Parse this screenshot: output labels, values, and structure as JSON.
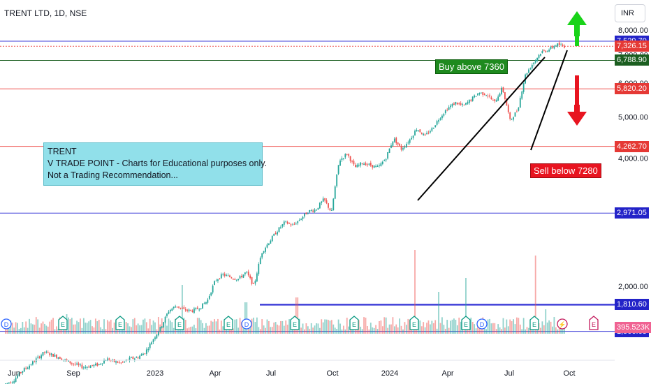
{
  "header": {
    "title": "TRENT LTD, 1D, NSE",
    "currency": "INR"
  },
  "note": {
    "line1": "TRENT",
    "line2": "V TRADE POINT - Charts for Educational purposes only.",
    "line3": "Not a Trading Recommendation..."
  },
  "annotations": {
    "buy": "Buy above 7360",
    "sell": "Sell below 7280"
  },
  "colors": {
    "up": "#26a69a",
    "down": "#ef5350",
    "buy": "#1e8a1e",
    "sell": "#e81420",
    "blue_line": "#3f3fd8",
    "red_line": "#ef5350",
    "green_line": "#1b5e20"
  },
  "chart_data": {
    "type": "line",
    "ylim": [
      1000,
      8500
    ],
    "y_ticks": [
      "2,000.00",
      "3,000.00",
      "4,000.00",
      "5,000.00",
      "6,000.00",
      "7,000.00",
      "8,000.00"
    ],
    "x_ticks": [
      "Jun",
      "Sep",
      "2023",
      "Apr",
      "Jul",
      "Oct",
      "2024",
      "Apr",
      "Jul",
      "Oct"
    ],
    "price_path": [
      1180,
      1200,
      1260,
      1300,
      1350,
      1400,
      1380,
      1360,
      1330,
      1310,
      1290,
      1300,
      1310,
      1350,
      1330,
      1320,
      1350,
      1360,
      1400,
      1500,
      1600,
      1750,
      1800,
      1760,
      1750,
      1780,
      1850,
      2060,
      2130,
      2100,
      2080,
      2160,
      2000,
      2400,
      2550,
      2700,
      2830,
      2780,
      2880,
      3000,
      3030,
      3200,
      2980,
      3950,
      4100,
      3800,
      3900,
      3850,
      3800,
      4000,
      4450,
      4200,
      4400,
      4700,
      4500,
      4700,
      5000,
      5250,
      5400,
      5300,
      5500,
      5700,
      5650,
      5400,
      5850,
      4900,
      5200,
      6300,
      6700,
      7100,
      7200,
      7400,
      7326
    ],
    "levels": [
      {
        "label": "7,529.70",
        "value": 7529.7,
        "color": "blue"
      },
      {
        "label": "7,326.15",
        "value": 7326.15,
        "color": "red"
      },
      {
        "label": "6,788.90",
        "value": 6788.9,
        "color": "green"
      },
      {
        "label": "5,820.20",
        "value": 5820.2,
        "color": "red"
      },
      {
        "label": "4,262.70",
        "value": 4262.7,
        "color": "red"
      },
      {
        "label": "2,971.05",
        "value": 2971.05,
        "color": "blue"
      },
      {
        "label": "1,810.60",
        "value": 1810.6,
        "color": "blue"
      },
      {
        "label": "1,566.65",
        "value": 1566.65,
        "color": "blue"
      }
    ],
    "volume_label": "395.523K"
  }
}
